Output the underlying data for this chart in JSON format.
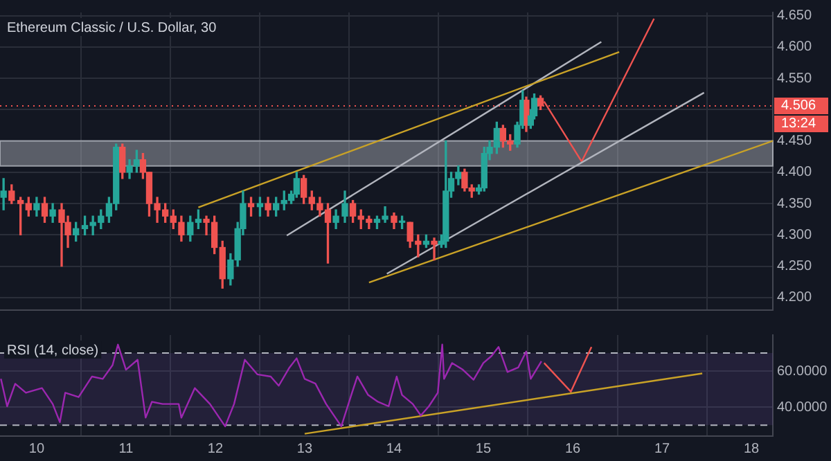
{
  "chart_data": [
    {
      "type": "candlestick",
      "title": "Ethereum Classic / U.S. Dollar, 30",
      "x": [
        9.63,
        9.72,
        9.82,
        9.91,
        10.0,
        10.09,
        10.18,
        10.28,
        10.35,
        10.44,
        10.54,
        10.63,
        10.72,
        10.81,
        10.89,
        10.96,
        11.04,
        11.12,
        11.19,
        11.26,
        11.35,
        11.44,
        11.53,
        11.62,
        11.72,
        11.81,
        11.9,
        11.99,
        12.08,
        12.17,
        12.25,
        12.31,
        12.4,
        12.5,
        12.59,
        12.68,
        12.77,
        12.85,
        12.91,
        12.99,
        13.08,
        13.17,
        13.26,
        13.35,
        13.45,
        13.54,
        13.63,
        13.72,
        13.81,
        13.9,
        14.0,
        14.09,
        14.18,
        14.27,
        14.36,
        14.45,
        14.53,
        14.58,
        14.64,
        14.72,
        14.79,
        14.87,
        14.95,
        15.01,
        15.07,
        15.15,
        15.22,
        15.3,
        15.38,
        15.44,
        15.48,
        15.53,
        15.57,
        15.64
      ],
      "ohlc": [
        [
          4.36,
          4.39,
          4.34,
          4.37
        ],
        [
          4.37,
          4.38,
          4.35,
          4.355
        ],
        [
          4.355,
          4.36,
          4.3,
          4.35
        ],
        [
          4.35,
          4.36,
          4.33,
          4.34
        ],
        [
          4.34,
          4.36,
          4.33,
          4.35
        ],
        [
          4.35,
          4.36,
          4.32,
          4.33
        ],
        [
          4.33,
          4.35,
          4.32,
          4.34
        ],
        [
          4.34,
          4.35,
          4.25,
          4.32
        ],
        [
          4.32,
          4.33,
          4.28,
          4.3
        ],
        [
          4.3,
          4.32,
          4.29,
          4.31
        ],
        [
          4.31,
          4.33,
          4.3,
          4.315
        ],
        [
          4.315,
          4.33,
          4.3,
          4.32
        ],
        [
          4.32,
          4.34,
          4.31,
          4.33
        ],
        [
          4.33,
          4.36,
          4.32,
          4.35
        ],
        [
          4.35,
          4.445,
          4.34,
          4.44
        ],
        [
          4.44,
          4.445,
          4.39,
          4.4
        ],
        [
          4.4,
          4.42,
          4.39,
          4.41
        ],
        [
          4.41,
          4.435,
          4.4,
          4.42
        ],
        [
          4.42,
          4.43,
          4.39,
          4.4
        ],
        [
          4.4,
          4.4,
          4.33,
          4.35
        ],
        [
          4.35,
          4.36,
          4.32,
          4.34
        ],
        [
          4.34,
          4.35,
          4.32,
          4.33
        ],
        [
          4.33,
          4.34,
          4.31,
          4.32
        ],
        [
          4.32,
          4.33,
          4.29,
          4.3
        ],
        [
          4.3,
          4.33,
          4.29,
          4.32
        ],
        [
          4.32,
          4.34,
          4.31,
          4.325
        ],
        [
          4.325,
          4.33,
          4.3,
          4.32
        ],
        [
          4.32,
          4.33,
          4.27,
          4.28
        ],
        [
          4.28,
          4.29,
          4.215,
          4.23
        ],
        [
          4.23,
          4.27,
          4.22,
          4.26
        ],
        [
          4.26,
          4.32,
          4.25,
          4.31
        ],
        [
          4.31,
          4.37,
          4.3,
          4.35
        ],
        [
          4.35,
          4.36,
          4.33,
          4.345
        ],
        [
          4.345,
          4.36,
          4.33,
          4.35
        ],
        [
          4.35,
          4.36,
          4.33,
          4.34
        ],
        [
          4.34,
          4.36,
          4.33,
          4.35
        ],
        [
          4.35,
          4.37,
          4.34,
          4.355
        ],
        [
          4.355,
          4.37,
          4.35,
          4.365
        ],
        [
          4.365,
          4.4,
          4.36,
          4.39
        ],
        [
          4.39,
          4.395,
          4.35,
          4.36
        ],
        [
          4.36,
          4.37,
          4.34,
          4.35
        ],
        [
          4.35,
          4.36,
          4.33,
          4.34
        ],
        [
          4.34,
          4.35,
          4.255,
          4.32
        ],
        [
          4.32,
          4.34,
          4.31,
          4.33
        ],
        [
          4.33,
          4.37,
          4.32,
          4.35
        ],
        [
          4.35,
          4.355,
          4.32,
          4.33
        ],
        [
          4.33,
          4.34,
          4.31,
          4.325
        ],
        [
          4.325,
          4.33,
          4.31,
          4.32
        ],
        [
          4.32,
          4.33,
          4.31,
          4.325
        ],
        [
          4.325,
          4.345,
          4.32,
          4.33
        ],
        [
          4.33,
          4.335,
          4.31,
          4.32
        ],
        [
          4.32,
          4.33,
          4.31,
          4.32
        ],
        [
          4.32,
          4.32,
          4.28,
          4.29
        ],
        [
          4.29,
          4.3,
          4.265,
          4.285
        ],
        [
          4.285,
          4.3,
          4.28,
          4.29
        ],
        [
          4.29,
          4.295,
          4.26,
          4.285
        ],
        [
          4.285,
          4.3,
          4.28,
          4.29
        ],
        [
          4.29,
          4.45,
          4.28,
          4.37
        ],
        [
          4.37,
          4.4,
          4.36,
          4.39
        ],
        [
          4.39,
          4.41,
          4.38,
          4.4
        ],
        [
          4.4,
          4.405,
          4.37,
          4.375
        ],
        [
          4.375,
          4.38,
          4.36,
          4.37
        ],
        [
          4.37,
          4.38,
          4.365,
          4.375
        ],
        [
          4.375,
          4.44,
          4.37,
          4.43
        ],
        [
          4.43,
          4.45,
          4.42,
          4.44
        ],
        [
          4.44,
          4.48,
          4.43,
          4.47
        ],
        [
          4.47,
          4.475,
          4.44,
          4.45
        ],
        [
          4.45,
          4.46,
          4.435,
          4.445
        ],
        [
          4.445,
          4.48,
          4.44,
          4.475
        ],
        [
          4.475,
          4.53,
          4.47,
          4.515
        ],
        [
          4.515,
          4.52,
          4.465,
          4.475
        ],
        [
          4.475,
          4.5,
          4.47,
          4.49
        ],
        [
          4.49,
          4.525,
          4.485,
          4.518
        ],
        [
          4.518,
          4.522,
          4.5,
          4.506
        ]
      ],
      "series": [
        {
          "type": "line",
          "color": "#c9a227",
          "x": [
            11.81,
            16.52
          ],
          "values": [
            4.344,
            4.592
          ]
        },
        {
          "type": "line",
          "color": "#c9a227",
          "x": [
            13.72,
            18.24
          ],
          "values": [
            4.224,
            4.45
          ]
        },
        {
          "type": "line",
          "color": "#b2b5be",
          "x": [
            12.8,
            16.32
          ],
          "values": [
            4.299,
            4.608
          ]
        },
        {
          "type": "line",
          "color": "#b2b5be",
          "x": [
            13.92,
            17.47
          ],
          "values": [
            4.238,
            4.527
          ]
        },
        {
          "type": "line",
          "color": "#ef5350",
          "x": [
            15.68,
            16.1,
            16.91
          ],
          "values": [
            4.513,
            4.417,
            4.645
          ]
        }
      ],
      "bands": [
        {
          "axis": "y",
          "from": 4.41,
          "to": 4.45,
          "color": "#b2b5be"
        }
      ],
      "ref_lines": [
        {
          "axis": "y",
          "value": 4.506,
          "label": "4.506",
          "color": "#ef5350",
          "line_style": "dotted"
        }
      ],
      "annotations": [
        "13:24"
      ],
      "xlim": [
        9.59,
        18.24
      ],
      "xticks": [
        10,
        11,
        12,
        13,
        14,
        15,
        16,
        17,
        18
      ],
      "ylim": [
        4.18,
        4.655
      ],
      "yticks": [
        {
          "value": 4.2,
          "label": "4.200"
        },
        {
          "value": 4.25,
          "label": "4.250"
        },
        {
          "value": 4.3,
          "label": "4.300"
        },
        {
          "value": 4.35,
          "label": "4.350"
        },
        {
          "value": 4.4,
          "label": "4.400"
        },
        {
          "value": 4.45,
          "label": "4.450"
        },
        {
          "value": 4.5,
          "label": null
        },
        {
          "value": 4.55,
          "label": "4.550"
        },
        {
          "value": 4.6,
          "label": "4.600"
        },
        {
          "value": 4.65,
          "label": "4.650"
        }
      ],
      "grid": true,
      "legend": false,
      "tick_labels": "y"
    },
    {
      "type": "line",
      "title": "RSI (14, close)",
      "series": [
        {
          "type": "line",
          "color": "#9c27b0",
          "x": [
            9.6,
            9.67,
            9.76,
            9.88,
            10.06,
            10.18,
            10.26,
            10.32,
            10.47,
            10.62,
            10.74,
            10.85,
            10.91,
            11.0,
            11.13,
            11.22,
            11.29,
            11.41,
            11.59,
            11.62,
            11.77,
            11.94,
            12.11,
            12.21,
            12.33,
            12.47,
            12.62,
            12.71,
            12.83,
            12.91,
            13.0,
            13.12,
            13.24,
            13.41,
            13.53,
            13.59,
            13.71,
            13.82,
            13.94,
            14.03,
            14.09,
            14.21,
            14.3,
            14.39,
            14.49,
            14.54,
            14.56,
            14.65,
            14.77,
            14.89,
            15.0,
            15.09,
            15.17,
            15.27,
            15.39,
            15.48,
            15.53,
            15.65
          ],
          "values": [
            55.7,
            40.5,
            53,
            48,
            50.6,
            41.8,
            31.7,
            48,
            45.6,
            57,
            55.7,
            63.3,
            74.7,
            60.8,
            66.3,
            34.2,
            43,
            41.8,
            41.8,
            34.2,
            50.6,
            41.8,
            29.4,
            41.8,
            66.3,
            58.2,
            57,
            51.9,
            62,
            67.1,
            55.7,
            53.1,
            41.8,
            29.4,
            48,
            57,
            46.8,
            43,
            40.5,
            57,
            46.8,
            41.8,
            35.4,
            40.5,
            48,
            74.7,
            55.7,
            64.5,
            60.8,
            55.2,
            64.5,
            68.3,
            73.4,
            59.5,
            62,
            70.9,
            55.7,
            65.5
          ]
        },
        {
          "type": "line",
          "color": "#c9a227",
          "x": [
            13.0,
            17.45
          ],
          "values": [
            25.3,
            58.7
          ]
        },
        {
          "type": "line",
          "color": "#ef5350",
          "x": [
            15.68,
            15.98,
            16.21
          ],
          "values": [
            64.5,
            48.6,
            73.4
          ]
        }
      ],
      "bands": [
        {
          "axis": "y",
          "from": 30,
          "to": 70,
          "color": "#7e57c2"
        }
      ],
      "ref_lines": [
        {
          "axis": "y",
          "value": 70,
          "color": "#b2b5be",
          "line_style": "dashed"
        },
        {
          "axis": "y",
          "value": 30,
          "color": "#b2b5be",
          "line_style": "dashed"
        }
      ],
      "xlim": [
        9.59,
        18.24
      ],
      "xticks": [
        10,
        11,
        12,
        13,
        14,
        15,
        16,
        17,
        18
      ],
      "ylim": [
        24,
        80
      ],
      "yticks": [
        {
          "value": 40,
          "label": "40.0000"
        },
        {
          "value": 60,
          "label": "60.0000"
        }
      ],
      "grid": true,
      "legend": false
    }
  ]
}
